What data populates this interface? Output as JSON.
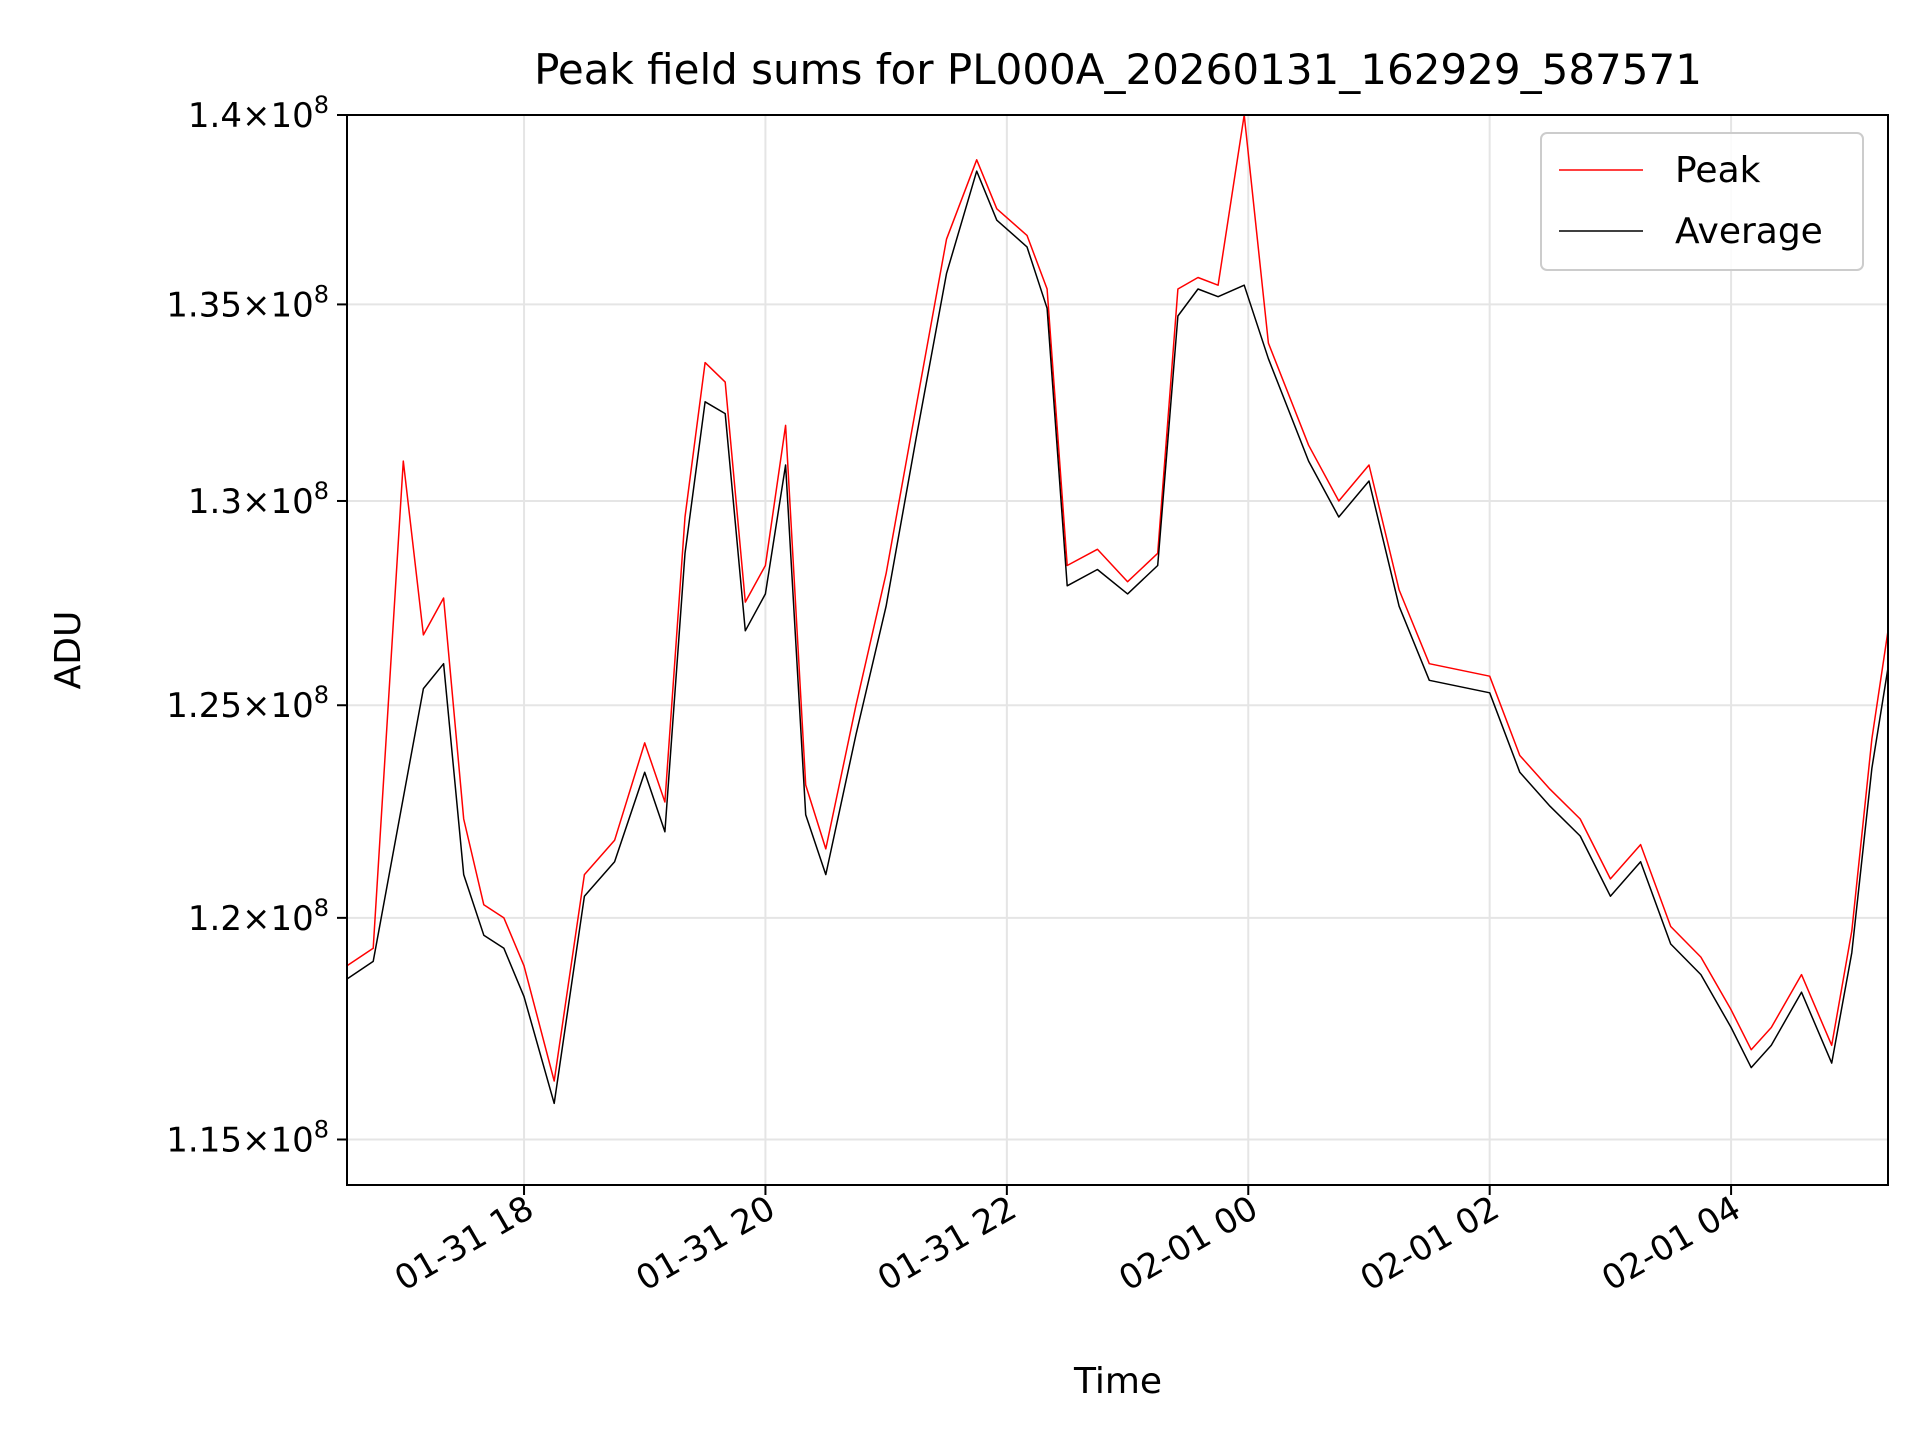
{
  "chart_data": {
    "type": "line",
    "title": "Peak field sums for PL000A_20260131_162929_587571",
    "xlabel": "Time",
    "ylabel": "ADU",
    "x_range": [
      "2026-01-31 16:32",
      "2026-02-01 05:18"
    ],
    "ylim": [
      114000000,
      140000000
    ],
    "y_scale": "log",
    "grid": true,
    "legend_position": "top-right",
    "x_ticks": [
      {
        "value": "2026-01-31 18:00",
        "label": "01-31 18"
      },
      {
        "value": "2026-01-31 20:00",
        "label": "01-31 20"
      },
      {
        "value": "2026-01-31 22:00",
        "label": "01-31 22"
      },
      {
        "value": "2026-02-01 00:00",
        "label": "02-01 00"
      },
      {
        "value": "2026-02-01 02:00",
        "label": "02-01 02"
      },
      {
        "value": "2026-02-01 04:00",
        "label": "02-01 04"
      }
    ],
    "y_ticks": [
      {
        "value": 115000000,
        "mantissa": "1.15",
        "exponent": "8"
      },
      {
        "value": 120000000,
        "mantissa": "1.2",
        "exponent": "8"
      },
      {
        "value": 125000000,
        "mantissa": "1.25",
        "exponent": "8"
      },
      {
        "value": 130000000,
        "mantissa": "1.3",
        "exponent": "8"
      },
      {
        "value": 135000000,
        "mantissa": "1.35",
        "exponent": "8"
      },
      {
        "value": 140000000,
        "mantissa": "1.4",
        "exponent": "8"
      }
    ],
    "series": [
      {
        "name": "Peak",
        "color": "#ff0000",
        "x": [
          "2026-01-31 16:32",
          "2026-01-31 16:45",
          "2026-01-31 17:00",
          "2026-01-31 17:10",
          "2026-01-31 17:20",
          "2026-01-31 17:30",
          "2026-01-31 17:40",
          "2026-01-31 17:50",
          "2026-01-31 18:00",
          "2026-01-31 18:15",
          "2026-01-31 18:30",
          "2026-01-31 18:45",
          "2026-01-31 19:00",
          "2026-01-31 19:10",
          "2026-01-31 19:20",
          "2026-01-31 19:30",
          "2026-01-31 19:40",
          "2026-01-31 19:50",
          "2026-01-31 20:00",
          "2026-01-31 20:10",
          "2026-01-31 20:20",
          "2026-01-31 20:30",
          "2026-01-31 20:45",
          "2026-01-31 21:00",
          "2026-01-31 21:15",
          "2026-01-31 21:30",
          "2026-01-31 21:45",
          "2026-01-31 21:55",
          "2026-01-31 22:10",
          "2026-01-31 22:20",
          "2026-01-31 22:30",
          "2026-01-31 22:45",
          "2026-01-31 23:00",
          "2026-01-31 23:15",
          "2026-01-31 23:25",
          "2026-01-31 23:35",
          "2026-01-31 23:45",
          "2026-01-31 23:58",
          "2026-02-01 00:10",
          "2026-02-01 00:30",
          "2026-02-01 00:45",
          "2026-02-01 01:00",
          "2026-02-01 01:15",
          "2026-02-01 01:30",
          "2026-02-01 02:00",
          "2026-02-01 02:15",
          "2026-02-01 02:30",
          "2026-02-01 02:45",
          "2026-02-01 03:00",
          "2026-02-01 03:15",
          "2026-02-01 03:30",
          "2026-02-01 03:45",
          "2026-02-01 04:00",
          "2026-02-01 04:10",
          "2026-02-01 04:20",
          "2026-02-01 04:35",
          "2026-02-01 04:50",
          "2026-02-01 05:00",
          "2026-02-01 05:10",
          "2026-02-01 05:18"
        ],
        "values": [
          118900000,
          119300000,
          131000000,
          126700000,
          127600000,
          122300000,
          120300000,
          120000000,
          118900000,
          116300000,
          121000000,
          121800000,
          124100000,
          122700000,
          129600000,
          133500000,
          133000000,
          127500000,
          128400000,
          131900000,
          123100000,
          121600000,
          125000000,
          128200000,
          132400000,
          136700000,
          138800000,
          137500000,
          136800000,
          135400000,
          128400000,
          128800000,
          128000000,
          128700000,
          135400000,
          135700000,
          135500000,
          140000000,
          134000000,
          131400000,
          130000000,
          130900000,
          127800000,
          126000000,
          125700000,
          123800000,
          123000000,
          122300000,
          120900000,
          121700000,
          119800000,
          119100000,
          117900000,
          117000000,
          117500000,
          118700000,
          117100000,
          119700000,
          124200000,
          126800000
        ]
      },
      {
        "name": "Average",
        "color": "#000000",
        "x": [
          "2026-01-31 16:32",
          "2026-01-31 16:45",
          "2026-01-31 17:00",
          "2026-01-31 17:10",
          "2026-01-31 17:20",
          "2026-01-31 17:30",
          "2026-01-31 17:40",
          "2026-01-31 17:50",
          "2026-01-31 18:00",
          "2026-01-31 18:15",
          "2026-01-31 18:30",
          "2026-01-31 18:45",
          "2026-01-31 19:00",
          "2026-01-31 19:10",
          "2026-01-31 19:20",
          "2026-01-31 19:30",
          "2026-01-31 19:40",
          "2026-01-31 19:50",
          "2026-01-31 20:00",
          "2026-01-31 20:10",
          "2026-01-31 20:20",
          "2026-01-31 20:30",
          "2026-01-31 20:45",
          "2026-01-31 21:00",
          "2026-01-31 21:15",
          "2026-01-31 21:30",
          "2026-01-31 21:45",
          "2026-01-31 21:55",
          "2026-01-31 22:10",
          "2026-01-31 22:20",
          "2026-01-31 22:30",
          "2026-01-31 22:45",
          "2026-01-31 23:00",
          "2026-01-31 23:15",
          "2026-01-31 23:25",
          "2026-01-31 23:35",
          "2026-01-31 23:45",
          "2026-01-31 23:58",
          "2026-02-01 00:10",
          "2026-02-01 00:30",
          "2026-02-01 00:45",
          "2026-02-01 01:00",
          "2026-02-01 01:15",
          "2026-02-01 01:30",
          "2026-02-01 02:00",
          "2026-02-01 02:15",
          "2026-02-01 02:30",
          "2026-02-01 02:45",
          "2026-02-01 03:00",
          "2026-02-01 03:15",
          "2026-02-01 03:30",
          "2026-02-01 03:45",
          "2026-02-01 04:00",
          "2026-02-01 04:10",
          "2026-02-01 04:20",
          "2026-02-01 04:35",
          "2026-02-01 04:50",
          "2026-02-01 05:00",
          "2026-02-01 05:10",
          "2026-02-01 05:18"
        ],
        "values": [
          118600000,
          119000000,
          122800000,
          125400000,
          126000000,
          121000000,
          119600000,
          119300000,
          118200000,
          115800000,
          120500000,
          121300000,
          123400000,
          122000000,
          128700000,
          132500000,
          132200000,
          126800000,
          127700000,
          130900000,
          122400000,
          121000000,
          124300000,
          127400000,
          131600000,
          135800000,
          138500000,
          137200000,
          136500000,
          134900000,
          127900000,
          128300000,
          127700000,
          128400000,
          134700000,
          135400000,
          135200000,
          135500000,
          133600000,
          131000000,
          129600000,
          130500000,
          127400000,
          125600000,
          125300000,
          123400000,
          122600000,
          121900000,
          120500000,
          121300000,
          119400000,
          118700000,
          117500000,
          116600000,
          117100000,
          118300000,
          116700000,
          119200000,
          123500000,
          125900000
        ]
      }
    ]
  }
}
